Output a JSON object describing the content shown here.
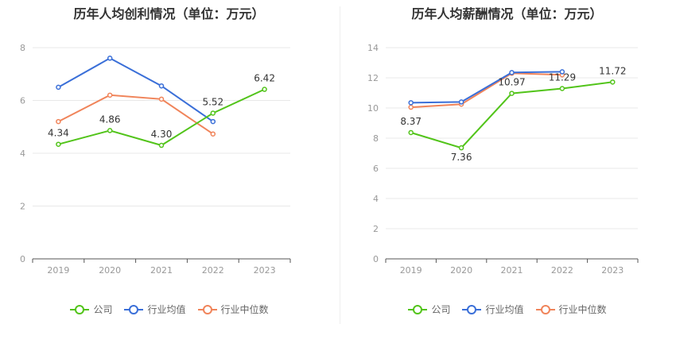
{
  "colors": {
    "company": "#52c41a",
    "industry_avg": "#3a6fd8",
    "industry_median": "#f0845a",
    "grid": "#e8e8e8",
    "axis": "#555555",
    "tick_text": "#999999",
    "label_text": "#333333"
  },
  "legend": {
    "company": "公司",
    "industry_avg": "行业均值",
    "industry_median": "行业中位数"
  },
  "chart_data": [
    {
      "type": "line",
      "title": "历年人均创利情况（单位：万元）",
      "categories": [
        "2019",
        "2020",
        "2021",
        "2022",
        "2023"
      ],
      "ylim": [
        0,
        8
      ],
      "yticks": [
        0,
        2,
        4,
        6,
        8
      ],
      "grid": true,
      "legend_position": "bottom",
      "series": [
        {
          "key": "company",
          "name": "公司",
          "values": [
            4.34,
            4.86,
            4.3,
            5.52,
            6.42
          ],
          "labels": [
            "4.34",
            "4.86",
            "4.30",
            "5.52",
            "6.42"
          ]
        },
        {
          "key": "industry_avg",
          "name": "行业均值",
          "values": [
            6.5,
            7.6,
            6.55,
            5.2,
            null
          ]
        },
        {
          "key": "industry_median",
          "name": "行业中位数",
          "values": [
            5.2,
            6.2,
            6.05,
            4.73,
            null
          ]
        }
      ]
    },
    {
      "type": "line",
      "title": "历年人均薪酬情况（单位：万元）",
      "categories": [
        "2019",
        "2020",
        "2021",
        "2022",
        "2023"
      ],
      "ylim": [
        0,
        14
      ],
      "yticks": [
        0,
        2,
        4,
        6,
        8,
        10,
        12,
        14
      ],
      "grid": true,
      "legend_position": "bottom",
      "series": [
        {
          "key": "company",
          "name": "公司",
          "values": [
            8.37,
            7.36,
            10.97,
            11.29,
            11.72
          ],
          "labels": [
            "8.37",
            "7.36",
            "10.97",
            "11.29",
            "11.72"
          ]
        },
        {
          "key": "industry_avg",
          "name": "行业均值",
          "values": [
            10.35,
            10.4,
            12.35,
            12.4,
            null
          ]
        },
        {
          "key": "industry_median",
          "name": "行业中位数",
          "values": [
            10.05,
            10.25,
            12.3,
            12.2,
            null
          ]
        }
      ]
    }
  ]
}
